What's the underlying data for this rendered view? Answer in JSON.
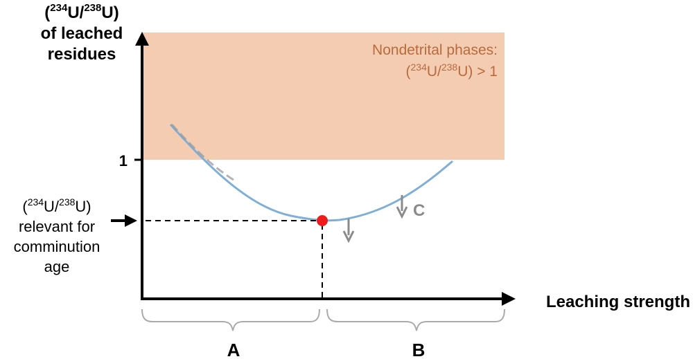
{
  "ylabel": {
    "line1": {
      "open": "(",
      "sup1": "234",
      "mid": "U/",
      "sup2": "238",
      "close": "U)"
    },
    "line2": "of leached",
    "line3": "residues"
  },
  "xlabel": "Leaching strength",
  "ytick": "1",
  "nondetrital": {
    "line1": "Nondetrital phases:",
    "line2": {
      "open": "(",
      "sup1": "234",
      "mid": "U/",
      "sup2": "238",
      "close": "U) > 1"
    }
  },
  "relevant_label": {
    "line1": {
      "open": "(",
      "sup1": "234",
      "mid": "U/",
      "sup2": "238",
      "close": "U)"
    },
    "line2": "relevant for",
    "line3": "comminution",
    "line4": "age"
  },
  "c_label": "C",
  "brackets": {
    "a": "A",
    "b": "B"
  },
  "colors": {
    "shade": "#f4ccb2",
    "shade_text": "#b86b3d",
    "curve": "#7faed6",
    "point": "#ee1c1c",
    "gray": "#8a8a8a",
    "axis": "#000000"
  }
}
